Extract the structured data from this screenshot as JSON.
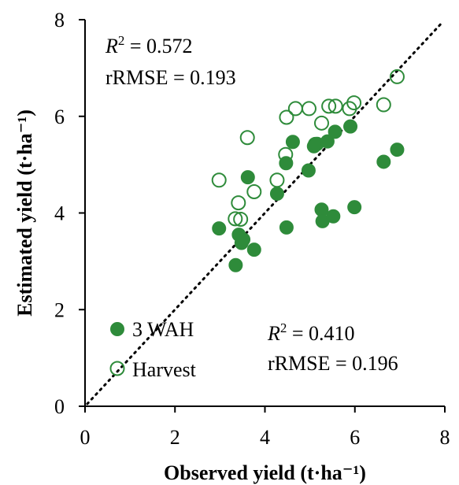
{
  "chart_data": {
    "type": "scatter",
    "xlabel": "Observed yield (t·ha⁻¹)",
    "ylabel": "Estimated yield (t·ha⁻¹)",
    "xlim": [
      0,
      8
    ],
    "ylim": [
      0,
      8
    ],
    "xticks": [
      "0",
      "2",
      "4",
      "6",
      "8"
    ],
    "yticks": [
      "0",
      "2",
      "4",
      "6",
      "8"
    ],
    "reference_line": "1:1 dotted",
    "grid": false,
    "legend_position": "bottom-left",
    "series": [
      {
        "name": "3 WAH",
        "marker": "filled-circle",
        "color": "#2e8b3a",
        "r2_label": "R",
        "r2_value": "2 = 0.410",
        "rrmse_label": "rRMSE = 0.196",
        "points": [
          [
            2.98,
            3.68
          ],
          [
            3.35,
            2.92
          ],
          [
            3.42,
            3.55
          ],
          [
            3.48,
            3.38
          ],
          [
            3.52,
            3.45
          ],
          [
            3.62,
            4.74
          ],
          [
            3.76,
            3.24
          ],
          [
            4.27,
            4.4
          ],
          [
            4.47,
            5.03
          ],
          [
            4.48,
            3.7
          ],
          [
            4.62,
            5.47
          ],
          [
            4.97,
            4.88
          ],
          [
            5.09,
            5.38
          ],
          [
            5.16,
            5.43
          ],
          [
            5.26,
            4.07
          ],
          [
            5.28,
            3.83
          ],
          [
            5.39,
            5.48
          ],
          [
            5.52,
            3.93
          ],
          [
            5.56,
            5.68
          ],
          [
            5.9,
            5.79
          ],
          [
            5.99,
            4.12
          ],
          [
            6.64,
            5.06
          ],
          [
            6.94,
            5.31
          ]
        ]
      },
      {
        "name": "Harvest",
        "marker": "open-circle",
        "color": "#2e8b3a",
        "r2_label": "R",
        "r2_value": "2 = 0.572",
        "rrmse_label": "rRMSE = 0.193",
        "points": [
          [
            2.98,
            4.68
          ],
          [
            3.34,
            3.88
          ],
          [
            3.41,
            4.21
          ],
          [
            3.46,
            3.87
          ],
          [
            3.61,
            5.56
          ],
          [
            3.76,
            4.44
          ],
          [
            4.27,
            4.68
          ],
          [
            4.46,
            5.21
          ],
          [
            4.48,
            5.98
          ],
          [
            4.68,
            6.16
          ],
          [
            4.98,
            6.16
          ],
          [
            5.12,
            5.42
          ],
          [
            5.26,
            5.86
          ],
          [
            5.42,
            6.21
          ],
          [
            5.57,
            6.21
          ],
          [
            5.88,
            6.16
          ],
          [
            5.98,
            6.28
          ],
          [
            6.64,
            6.24
          ],
          [
            6.94,
            6.82
          ]
        ]
      }
    ]
  }
}
